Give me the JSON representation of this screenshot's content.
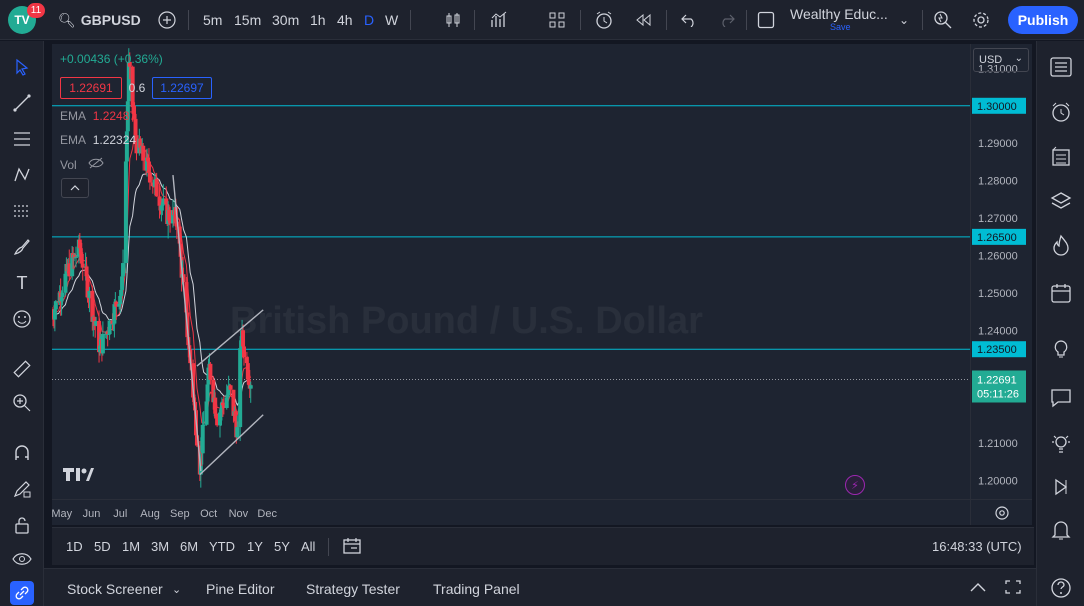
{
  "topbar": {
    "logo_text": "TV",
    "notification_count": "11",
    "symbol": "GBPUSD",
    "timeframes": [
      "5m",
      "15m",
      "30m",
      "1h",
      "4h",
      "D",
      "W"
    ],
    "active_timeframe": "D",
    "account_name": "Wealthy Educ...",
    "account_save": "Save",
    "publish_label": "Publish"
  },
  "legend": {
    "change": "+0.00436 (+0.36%)",
    "bid": "1.22691",
    "spread": "0.6",
    "ask": "1.22697",
    "ema1_label": "EMA",
    "ema1_value": "1.22487",
    "ema2_label": "EMA",
    "ema2_value": "1.22324",
    "vol_label": "Vol"
  },
  "watermark": "British Pound / U.S. Dollar",
  "currency": "USD",
  "price_axis": {
    "ticks": [
      "1.31000",
      "1.29000",
      "1.28000",
      "1.27000",
      "1.26000",
      "1.25000",
      "1.24000",
      "1.21000",
      "1.20000"
    ],
    "tick_values": [
      1.31,
      1.29,
      1.28,
      1.27,
      1.26,
      1.25,
      1.24,
      1.21,
      1.2
    ],
    "hline_labels": [
      "1.30000",
      "1.26500",
      "1.23500"
    ],
    "current_price": "1.22691",
    "countdown": "05:11:26"
  },
  "time_axis": {
    "labels": [
      "May",
      "Jun",
      "Jul",
      "Aug",
      "Sep",
      "Oct",
      "Nov",
      "Dec"
    ]
  },
  "range_bar": {
    "ranges": [
      "1D",
      "5D",
      "1M",
      "3M",
      "6M",
      "YTD",
      "1Y",
      "5Y",
      "All"
    ],
    "clock": "16:48:33 (UTC)"
  },
  "bottom_bar": {
    "tabs": [
      "Stock Screener",
      "Pine Editor",
      "Strategy Tester",
      "Trading Panel"
    ]
  },
  "colors": {
    "up": "#22ab94",
    "down": "#f23645",
    "hline": "#00bcd4",
    "ema_fast": "#f23645",
    "ema_slow": "#d1d4dc",
    "accent": "#2962ff"
  },
  "chart_data": {
    "type": "candlestick",
    "symbol": "GBPUSD",
    "interval": "D",
    "ylim": [
      1.195,
      1.3165
    ],
    "horizontal_levels": [
      1.3,
      1.265,
      1.235
    ],
    "last_price": 1.22691,
    "trendlines": [
      {
        "from": [
          "2022-08-29",
          1.2815
        ],
        "to": [
          "2022-09-27",
          1.2025
        ]
      },
      {
        "from": [
          "2022-09-26",
          1.2015
        ],
        "to": [
          "2022-12-01",
          1.2175
        ]
      },
      {
        "from": [
          "2022-09-23",
          1.2305
        ],
        "to": [
          "2022-12-01",
          1.2455
        ]
      }
    ]
  }
}
